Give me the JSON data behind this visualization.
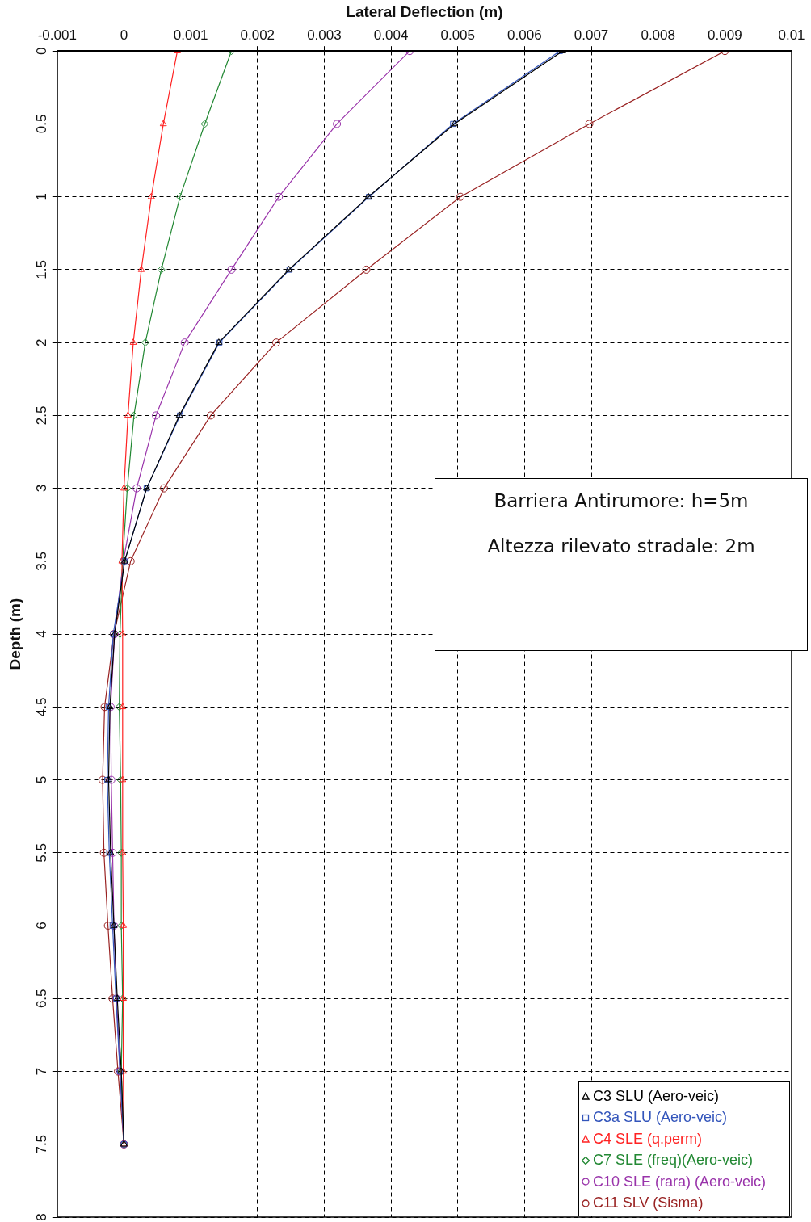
{
  "chart_data": {
    "type": "line",
    "xlabel": "Lateral Deflection (m)",
    "ylabel": "Depth (m)",
    "xlim": [
      -0.001,
      0.01
    ],
    "xticks": [
      -0.001,
      0,
      0.001,
      0.002,
      0.003,
      0.004,
      0.005,
      0.006,
      0.007,
      0.008,
      0.009,
      0.01
    ],
    "ylim": [
      8,
      0
    ],
    "yticks": [
      0,
      0.5,
      1,
      1.5,
      2,
      2.5,
      3,
      3.5,
      4,
      4.5,
      5,
      5.5,
      6,
      6.5,
      7,
      7.5,
      8
    ],
    "grid": true,
    "legend": "bottom right",
    "line_style": "solid",
    "annotations": [
      "Barriera Antirumore: h=5m",
      "Altezza rilevato stradale: 2m"
    ],
    "series": [
      {
        "name": "C3 SLU (Aero-veic)",
        "color": "#000000",
        "marker": "triangle",
        "x": [
          0.00657,
          0.00495,
          0.00366,
          0.00247,
          0.00142,
          0.00083,
          0.00034,
          1e-05,
          -0.00014,
          -0.00021,
          -0.00023,
          -0.0002,
          -0.00015,
          -0.0001,
          -4e-05,
          0
        ],
        "values": [
          0,
          0.5,
          1,
          1.5,
          2,
          2.5,
          3,
          3.5,
          4,
          4.5,
          5,
          5.5,
          6,
          6.5,
          7,
          7.5
        ]
      },
      {
        "name": "C3a SLU (Aero-veic)",
        "color": "#3355bb",
        "marker": "square",
        "x": [
          0.00653,
          0.00493,
          0.00367,
          0.00248,
          0.00143,
          0.00084,
          0.00034,
          1e-05,
          -0.00016,
          -0.00023,
          -0.00025,
          -0.00022,
          -0.00017,
          -0.00012,
          -6e-05,
          0
        ],
        "values": [
          0,
          0.5,
          1,
          1.5,
          2,
          2.5,
          3,
          3.5,
          4,
          4.5,
          5,
          5.5,
          6,
          6.5,
          7,
          7.5
        ]
      },
      {
        "name": "C4 SLE (q.perm)",
        "color": "#ff2222",
        "marker": "triangle",
        "x": [
          0.0008,
          0.00059,
          0.00041,
          0.00026,
          0.00014,
          6e-05,
          0,
          -3e-05,
          -2e-05,
          -2e-05,
          -2e-05,
          -2e-05,
          -1e-05,
          -1e-05,
          -1e-05,
          0
        ],
        "values": [
          0,
          0.5,
          1,
          1.5,
          2,
          2.5,
          3,
          3.5,
          4,
          4.5,
          5,
          5.5,
          6,
          6.5,
          7,
          7.5
        ]
      },
      {
        "name": "C7 SLE (freq)(Aero-veic)",
        "color": "#228833",
        "marker": "diamond",
        "x": [
          0.00161,
          0.00121,
          0.00084,
          0.00056,
          0.00032,
          0.00015,
          5e-05,
          -2e-05,
          -6e-05,
          -7e-05,
          -5e-05,
          -4e-05,
          -4e-05,
          -2e-05,
          -4e-05,
          0
        ],
        "values": [
          0,
          0.5,
          1,
          1.5,
          2,
          2.5,
          3,
          3.5,
          4,
          4.5,
          5,
          5.5,
          6,
          6.5,
          7,
          7.5
        ]
      },
      {
        "name": "C10 SLE (rara) (Aero-veic)",
        "color": "#9933aa",
        "marker": "circle",
        "x": [
          0.00428,
          0.00319,
          0.00232,
          0.00161,
          0.00091,
          0.00048,
          0.00019,
          -1e-05,
          -0.00014,
          -0.0002,
          -0.00019,
          -0.00017,
          -0.00015,
          -0.00011,
          -6e-05,
          0
        ],
        "values": [
          0,
          0.5,
          1,
          1.5,
          2,
          2.5,
          3,
          3.5,
          4,
          4.5,
          5,
          5.5,
          6,
          6.5,
          7,
          7.5
        ]
      },
      {
        "name": "C11 SLV (Sisma)",
        "color": "#992222",
        "marker": "circle",
        "x": [
          0.009,
          0.00697,
          0.00504,
          0.00363,
          0.00228,
          0.0013,
          0.0006,
          0.0001,
          -0.00015,
          -0.00029,
          -0.00032,
          -0.0003,
          -0.00024,
          -0.00017,
          -9e-05,
          0
        ],
        "values": [
          0,
          0.5,
          1,
          1.5,
          2,
          2.5,
          3,
          3.5,
          4,
          4.5,
          5,
          5.5,
          6,
          6.5,
          7,
          7.5
        ]
      }
    ]
  }
}
